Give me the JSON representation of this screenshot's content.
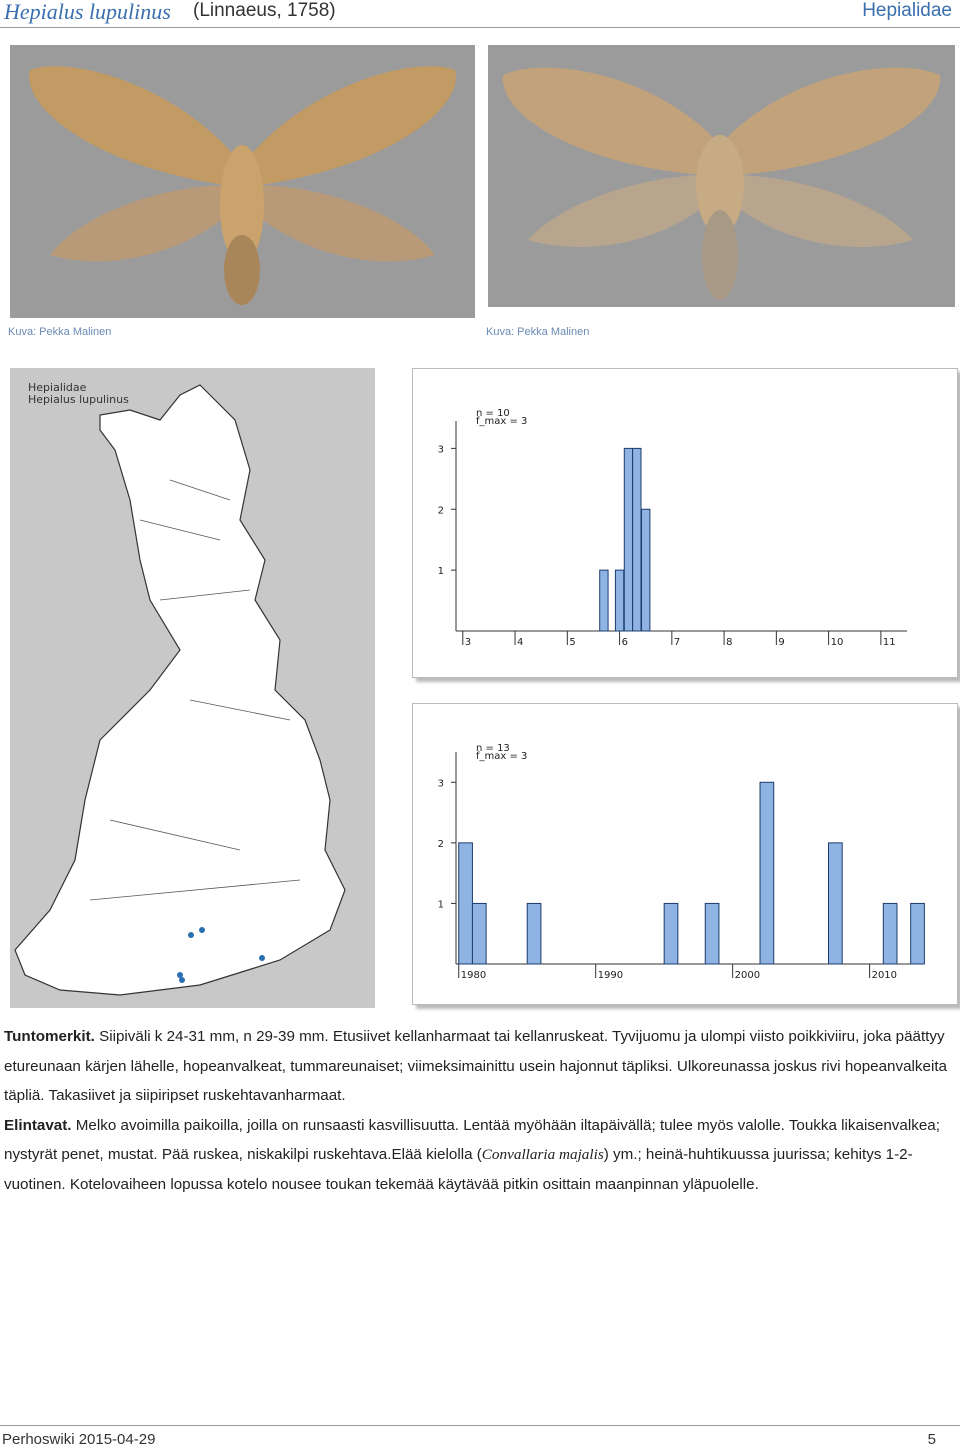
{
  "header": {
    "species": "Hepialus lupulinus",
    "author": "(Linnaeus, 1758)",
    "family": "Hepialidae"
  },
  "photos": [
    {
      "caption": "Kuva: Pekka Malinen"
    },
    {
      "caption": "Kuva: Pekka Malinen"
    }
  ],
  "map": {
    "family": "Hepialidae",
    "species": "Hepialus lupulinus"
  },
  "chart_data": [
    {
      "type": "bar",
      "annotations": [
        "n = 10",
        "f_max = 3"
      ],
      "x": [
        5.7,
        6.0,
        6.17,
        6.33,
        6.5
      ],
      "values": [
        1,
        1,
        3,
        3,
        2
      ],
      "color": "#8fb4e3",
      "xlim": [
        2.87,
        11.5
      ],
      "xticks": [
        3,
        4,
        5,
        6,
        7,
        8,
        9,
        10,
        11
      ],
      "ylim": [
        0,
        3.45
      ],
      "yticks": [
        1,
        2,
        3
      ]
    },
    {
      "type": "bar",
      "annotations": [
        "n = 13",
        "f_max = 3"
      ],
      "x": [
        1980,
        1981,
        1985,
        1995,
        1998,
        2002,
        2007,
        2011,
        2013
      ],
      "values": [
        2,
        1,
        1,
        1,
        1,
        3,
        2,
        1,
        1
      ],
      "color": "#8fb4e3",
      "xlim": [
        1979.8,
        2013.9
      ],
      "xticks": [
        1980,
        1990,
        2000,
        2010
      ],
      "ylim": [
        0,
        3.5
      ],
      "yticks": [
        1,
        2,
        3
      ]
    }
  ],
  "text": {
    "p1": {
      "label": "Tuntomerkit.",
      "text": "Siipiväli k 24-31 mm, n 29-39 mm. Etusiivet kellanharmaat tai kellanruskeat. Tyvijuomu ja ulompi viisto poikkiviiru, joka päättyy etureunaan kärjen lähelle, hopeanvalkeat, tummareunaiset; viimeksimainittu usein hajonnut täpliksi. Ulkoreunassa joskus rivi hopeanvalkeita täpliä. Takasiivet ja siipiripset ruskehtavanharmaat."
    },
    "p2": {
      "label": "Elintavat.",
      "text": "Melko avoimilla paikoilla, joilla on runsaasti kasvillisuutta. Lentää myöhään iltapäivällä; tulee myös valolle. Toukka likaisenvalkea; nystyrät penet, mustat. Pää ruskea, niskakilpi ruskehtava.Elää kielolla (",
      "italic": "Convallaria majalis",
      "after": ") ym.; heinä-huhtikuussa juurissa; kehitys 1-2-vuotinen. Kotelovaiheen lopussa kotelo nousee toukan tekemää käytävää pitkin osittain maanpinnan yläpuolelle."
    }
  },
  "footer": {
    "site_date": "Perhoswiki 2015-04-29",
    "page": "5"
  }
}
